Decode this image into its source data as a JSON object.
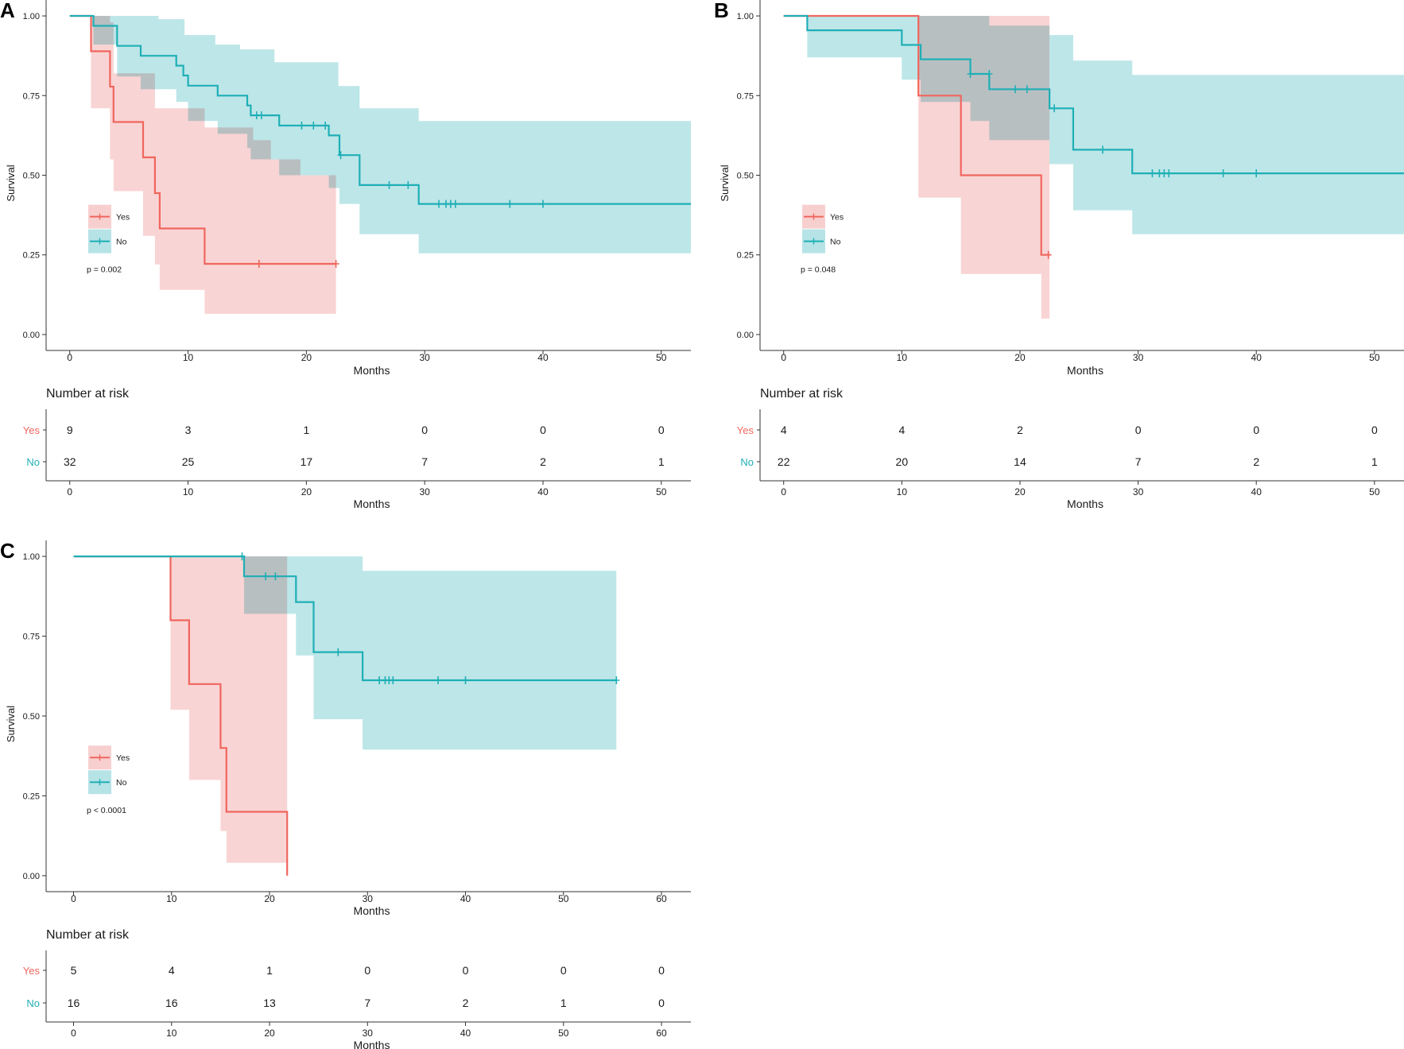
{
  "colors": {
    "yes": "#F0665E",
    "no": "#1EAFB6",
    "yes_band": "#F8CFCF",
    "no_band": "#B6E3E6",
    "axis": "#333333",
    "text": "#1a1a1a"
  },
  "axis_labels": {
    "x": "Months",
    "y": "Survival"
  },
  "risk_title": "Number at risk",
  "chart_data": [
    {
      "panel": "A",
      "type": "line",
      "subtype": "kaplan-meier",
      "title": "",
      "xlabel": "Months",
      "ylabel": "Survival",
      "xlim": [
        -2,
        52.5
      ],
      "ylim": [
        -0.05,
        1.05
      ],
      "xticks": [
        0,
        10,
        20,
        30,
        40,
        50
      ],
      "yticks": [
        0.0,
        0.25,
        0.5,
        0.75,
        1.0
      ],
      "ytick_labels": [
        "0.00",
        "0.25",
        "0.50",
        "0.75",
        "1.00"
      ],
      "legend": {
        "entries": [
          "Yes",
          "No"
        ],
        "position": "left-middle"
      },
      "p_value": "p = 0.002",
      "series": [
        {
          "name": "Yes",
          "color_key": "yes",
          "steps": [
            [
              0,
              1.0
            ],
            [
              1.8,
              0.889
            ],
            [
              3.4,
              0.778
            ],
            [
              3.7,
              0.667
            ],
            [
              6.2,
              0.556
            ],
            [
              7.2,
              0.444
            ],
            [
              7.6,
              0.333
            ],
            [
              11.4,
              0.222
            ],
            [
              22.5,
              0.222
            ]
          ],
          "lower": [
            [
              0,
              1.0
            ],
            [
              1.8,
              0.71
            ],
            [
              3.4,
              0.55
            ],
            [
              3.7,
              0.45
            ],
            [
              6.2,
              0.31
            ],
            [
              7.2,
              0.22
            ],
            [
              7.6,
              0.14
            ],
            [
              11.4,
              0.065
            ],
            [
              22.5,
              0.065
            ]
          ],
          "upper": [
            [
              0,
              1.0
            ],
            [
              1.8,
              1.0
            ],
            [
              3.4,
              0.98
            ],
            [
              3.7,
              0.82
            ],
            [
              6.2,
              0.82
            ],
            [
              7.2,
              0.71
            ],
            [
              7.6,
              0.71
            ],
            [
              11.4,
              0.65
            ],
            [
              15.5,
              0.61
            ],
            [
              17,
              0.55
            ],
            [
              19.5,
              0.5
            ],
            [
              22.5,
              0.5
            ]
          ],
          "censor": [
            [
              16,
              0.222
            ],
            [
              22.5,
              0.222
            ]
          ]
        },
        {
          "name": "No",
          "color_key": "no",
          "steps": [
            [
              0,
              1.0
            ],
            [
              2,
              0.969
            ],
            [
              4,
              0.906
            ],
            [
              6,
              0.875
            ],
            [
              9,
              0.844
            ],
            [
              9.6,
              0.813
            ],
            [
              10,
              0.781
            ],
            [
              12.5,
              0.75
            ],
            [
              15,
              0.719
            ],
            [
              15.3,
              0.688
            ],
            [
              17.7,
              0.656
            ],
            [
              21.9,
              0.625
            ],
            [
              22.8,
              0.563
            ],
            [
              24.5,
              0.469
            ],
            [
              29.5,
              0.41
            ],
            [
              52.5,
              0.41
            ]
          ],
          "lower": [
            [
              0,
              1.0
            ],
            [
              2,
              0.91
            ],
            [
              4,
              0.81
            ],
            [
              6,
              0.77
            ],
            [
              9,
              0.73
            ],
            [
              10,
              0.67
            ],
            [
              12.5,
              0.63
            ],
            [
              15,
              0.585
            ],
            [
              15.3,
              0.55
            ],
            [
              17.7,
              0.5
            ],
            [
              21.9,
              0.46
            ],
            [
              22.8,
              0.41
            ],
            [
              24.5,
              0.315
            ],
            [
              29.5,
              0.255
            ],
            [
              52.5,
              0.255
            ]
          ],
          "upper": [
            [
              0,
              1.0
            ],
            [
              7.5,
              0.99
            ],
            [
              9.7,
              0.94
            ],
            [
              12.3,
              0.91
            ],
            [
              14.4,
              0.895
            ],
            [
              17.3,
              0.855
            ],
            [
              21.9,
              0.855
            ],
            [
              22.7,
              0.78
            ],
            [
              24.5,
              0.71
            ],
            [
              29.5,
              0.67
            ],
            [
              52.5,
              0.67
            ]
          ],
          "censor": [
            [
              15.8,
              0.688
            ],
            [
              16.2,
              0.688
            ],
            [
              19.6,
              0.656
            ],
            [
              20.6,
              0.656
            ],
            [
              21.6,
              0.656
            ],
            [
              22.9,
              0.563
            ],
            [
              27,
              0.469
            ],
            [
              28.6,
              0.469
            ],
            [
              31.2,
              0.41
            ],
            [
              31.8,
              0.41
            ],
            [
              32.2,
              0.41
            ],
            [
              32.6,
              0.41
            ],
            [
              37.2,
              0.41
            ],
            [
              40,
              0.41
            ]
          ]
        }
      ],
      "risk_table": {
        "times": [
          0,
          10,
          20,
          30,
          40,
          50
        ],
        "rows": [
          {
            "label": "Yes",
            "values": [
              "9",
              "3",
              "1",
              "0",
              "0",
              "0"
            ]
          },
          {
            "label": "No",
            "values": [
              "32",
              "25",
              "17",
              "7",
              "2",
              "1"
            ]
          }
        ]
      }
    },
    {
      "panel": "B",
      "type": "line",
      "subtype": "kaplan-meier",
      "title": "",
      "xlabel": "Months",
      "ylabel": "Survival",
      "xlim": [
        -2,
        52.5
      ],
      "ylim": [
        -0.05,
        1.05
      ],
      "xticks": [
        0,
        10,
        20,
        30,
        40,
        50
      ],
      "yticks": [
        0.0,
        0.25,
        0.5,
        0.75,
        1.0
      ],
      "ytick_labels": [
        "0.00",
        "0.25",
        "0.50",
        "0.75",
        "1.00"
      ],
      "legend": {
        "entries": [
          "Yes",
          "No"
        ],
        "position": "left-middle"
      },
      "p_value": "p = 0.048",
      "series": [
        {
          "name": "Yes",
          "color_key": "yes",
          "steps": [
            [
              0,
              1.0
            ],
            [
              11.4,
              0.75
            ],
            [
              15,
              0.5
            ],
            [
              21.8,
              0.25
            ],
            [
              22.5,
              0.25
            ]
          ],
          "lower": [
            [
              0,
              1.0
            ],
            [
              11.4,
              0.43
            ],
            [
              15,
              0.19
            ],
            [
              21.8,
              0.05
            ],
            [
              22.5,
              0.05
            ]
          ],
          "upper": [
            [
              0,
              1.0
            ],
            [
              22.5,
              1.0
            ]
          ],
          "censor": [
            [
              22.4,
              0.25
            ]
          ]
        },
        {
          "name": "No",
          "color_key": "no",
          "steps": [
            [
              0,
              1.0
            ],
            [
              2,
              0.955
            ],
            [
              10,
              0.909
            ],
            [
              11.6,
              0.864
            ],
            [
              15.8,
              0.818
            ],
            [
              17.4,
              0.77
            ],
            [
              22.5,
              0.71
            ],
            [
              24.5,
              0.58
            ],
            [
              29.5,
              0.506
            ],
            [
              52.5,
              0.506
            ]
          ],
          "lower": [
            [
              0,
              1.0
            ],
            [
              2,
              0.87
            ],
            [
              10,
              0.8
            ],
            [
              11.6,
              0.73
            ],
            [
              15.8,
              0.67
            ],
            [
              17.4,
              0.61
            ],
            [
              22.5,
              0.535
            ],
            [
              24.5,
              0.39
            ],
            [
              29.5,
              0.315
            ],
            [
              52.5,
              0.315
            ]
          ],
          "upper": [
            [
              0,
              1.0
            ],
            [
              17.4,
              0.97
            ],
            [
              22.5,
              0.94
            ],
            [
              24.5,
              0.86
            ],
            [
              29.5,
              0.815
            ],
            [
              52.5,
              0.815
            ]
          ],
          "censor": [
            [
              15.8,
              0.818
            ],
            [
              17.4,
              0.818
            ],
            [
              19.6,
              0.77
            ],
            [
              20.6,
              0.77
            ],
            [
              22.9,
              0.71
            ],
            [
              27,
              0.58
            ],
            [
              31.2,
              0.506
            ],
            [
              31.8,
              0.506
            ],
            [
              32.2,
              0.506
            ],
            [
              32.6,
              0.506
            ],
            [
              37.2,
              0.506
            ],
            [
              40,
              0.506
            ]
          ]
        }
      ],
      "risk_table": {
        "times": [
          0,
          10,
          20,
          30,
          40,
          50
        ],
        "rows": [
          {
            "label": "Yes",
            "values": [
              "4",
              "4",
              "2",
              "0",
              "0",
              "0"
            ]
          },
          {
            "label": "No",
            "values": [
              "22",
              "20",
              "14",
              "7",
              "2",
              "1"
            ]
          }
        ]
      }
    },
    {
      "panel": "C",
      "type": "line",
      "subtype": "kaplan-meier",
      "title": "",
      "xlabel": "Months",
      "ylabel": "Survival",
      "xlim": [
        -2.8,
        63
      ],
      "ylim": [
        -0.05,
        1.05
      ],
      "xticks": [
        0,
        10,
        20,
        30,
        40,
        50,
        60
      ],
      "yticks": [
        0.0,
        0.25,
        0.5,
        0.75,
        1.0
      ],
      "ytick_labels": [
        "0.00",
        "0.25",
        "0.50",
        "0.75",
        "1.00"
      ],
      "legend": {
        "entries": [
          "Yes",
          "No"
        ],
        "position": "left-middle"
      },
      "p_value": "p < 0.0001",
      "series": [
        {
          "name": "Yes",
          "color_key": "yes",
          "steps": [
            [
              0,
              1.0
            ],
            [
              9.9,
              0.8
            ],
            [
              11.8,
              0.6
            ],
            [
              15,
              0.4
            ],
            [
              15.6,
              0.2
            ],
            [
              21.8,
              0.2
            ],
            [
              21.8,
              0.0
            ]
          ],
          "lower": [
            [
              0,
              1.0
            ],
            [
              9.9,
              0.52
            ],
            [
              11.8,
              0.3
            ],
            [
              15,
              0.14
            ],
            [
              15.6,
              0.04
            ],
            [
              21.8,
              0.04
            ]
          ],
          "upper": [
            [
              0,
              1.0
            ],
            [
              21.8,
              1.0
            ]
          ],
          "censor": []
        },
        {
          "name": "No",
          "color_key": "no",
          "steps": [
            [
              0,
              1.0
            ],
            [
              17.4,
              0.9375
            ],
            [
              22.7,
              0.857
            ],
            [
              24.5,
              0.7
            ],
            [
              29.5,
              0.612
            ],
            [
              55.4,
              0.612
            ]
          ],
          "lower": [
            [
              0,
              1.0
            ],
            [
              17.4,
              0.82
            ],
            [
              22.7,
              0.69
            ],
            [
              24.5,
              0.49
            ],
            [
              29.5,
              0.395
            ],
            [
              55.4,
              0.395
            ]
          ],
          "upper": [
            [
              0,
              1.0
            ],
            [
              29.5,
              1.0
            ],
            [
              29.5,
              0.955
            ],
            [
              55.4,
              0.955
            ]
          ],
          "censor": [
            [
              17.2,
              1.0
            ],
            [
              19.6,
              0.9375
            ],
            [
              20.6,
              0.9375
            ],
            [
              27,
              0.7
            ],
            [
              31.2,
              0.612
            ],
            [
              31.8,
              0.612
            ],
            [
              32.2,
              0.612
            ],
            [
              32.6,
              0.612
            ],
            [
              37.2,
              0.612
            ],
            [
              40,
              0.612
            ],
            [
              55.4,
              0.612
            ]
          ]
        }
      ],
      "risk_table": {
        "times": [
          0,
          10,
          20,
          30,
          40,
          50,
          60
        ],
        "rows": [
          {
            "label": "Yes",
            "values": [
              "5",
              "4",
              "1",
              "0",
              "0",
              "0",
              "0"
            ]
          },
          {
            "label": "No",
            "values": [
              "16",
              "16",
              "13",
              "7",
              "2",
              "1",
              "0"
            ]
          }
        ]
      }
    }
  ]
}
